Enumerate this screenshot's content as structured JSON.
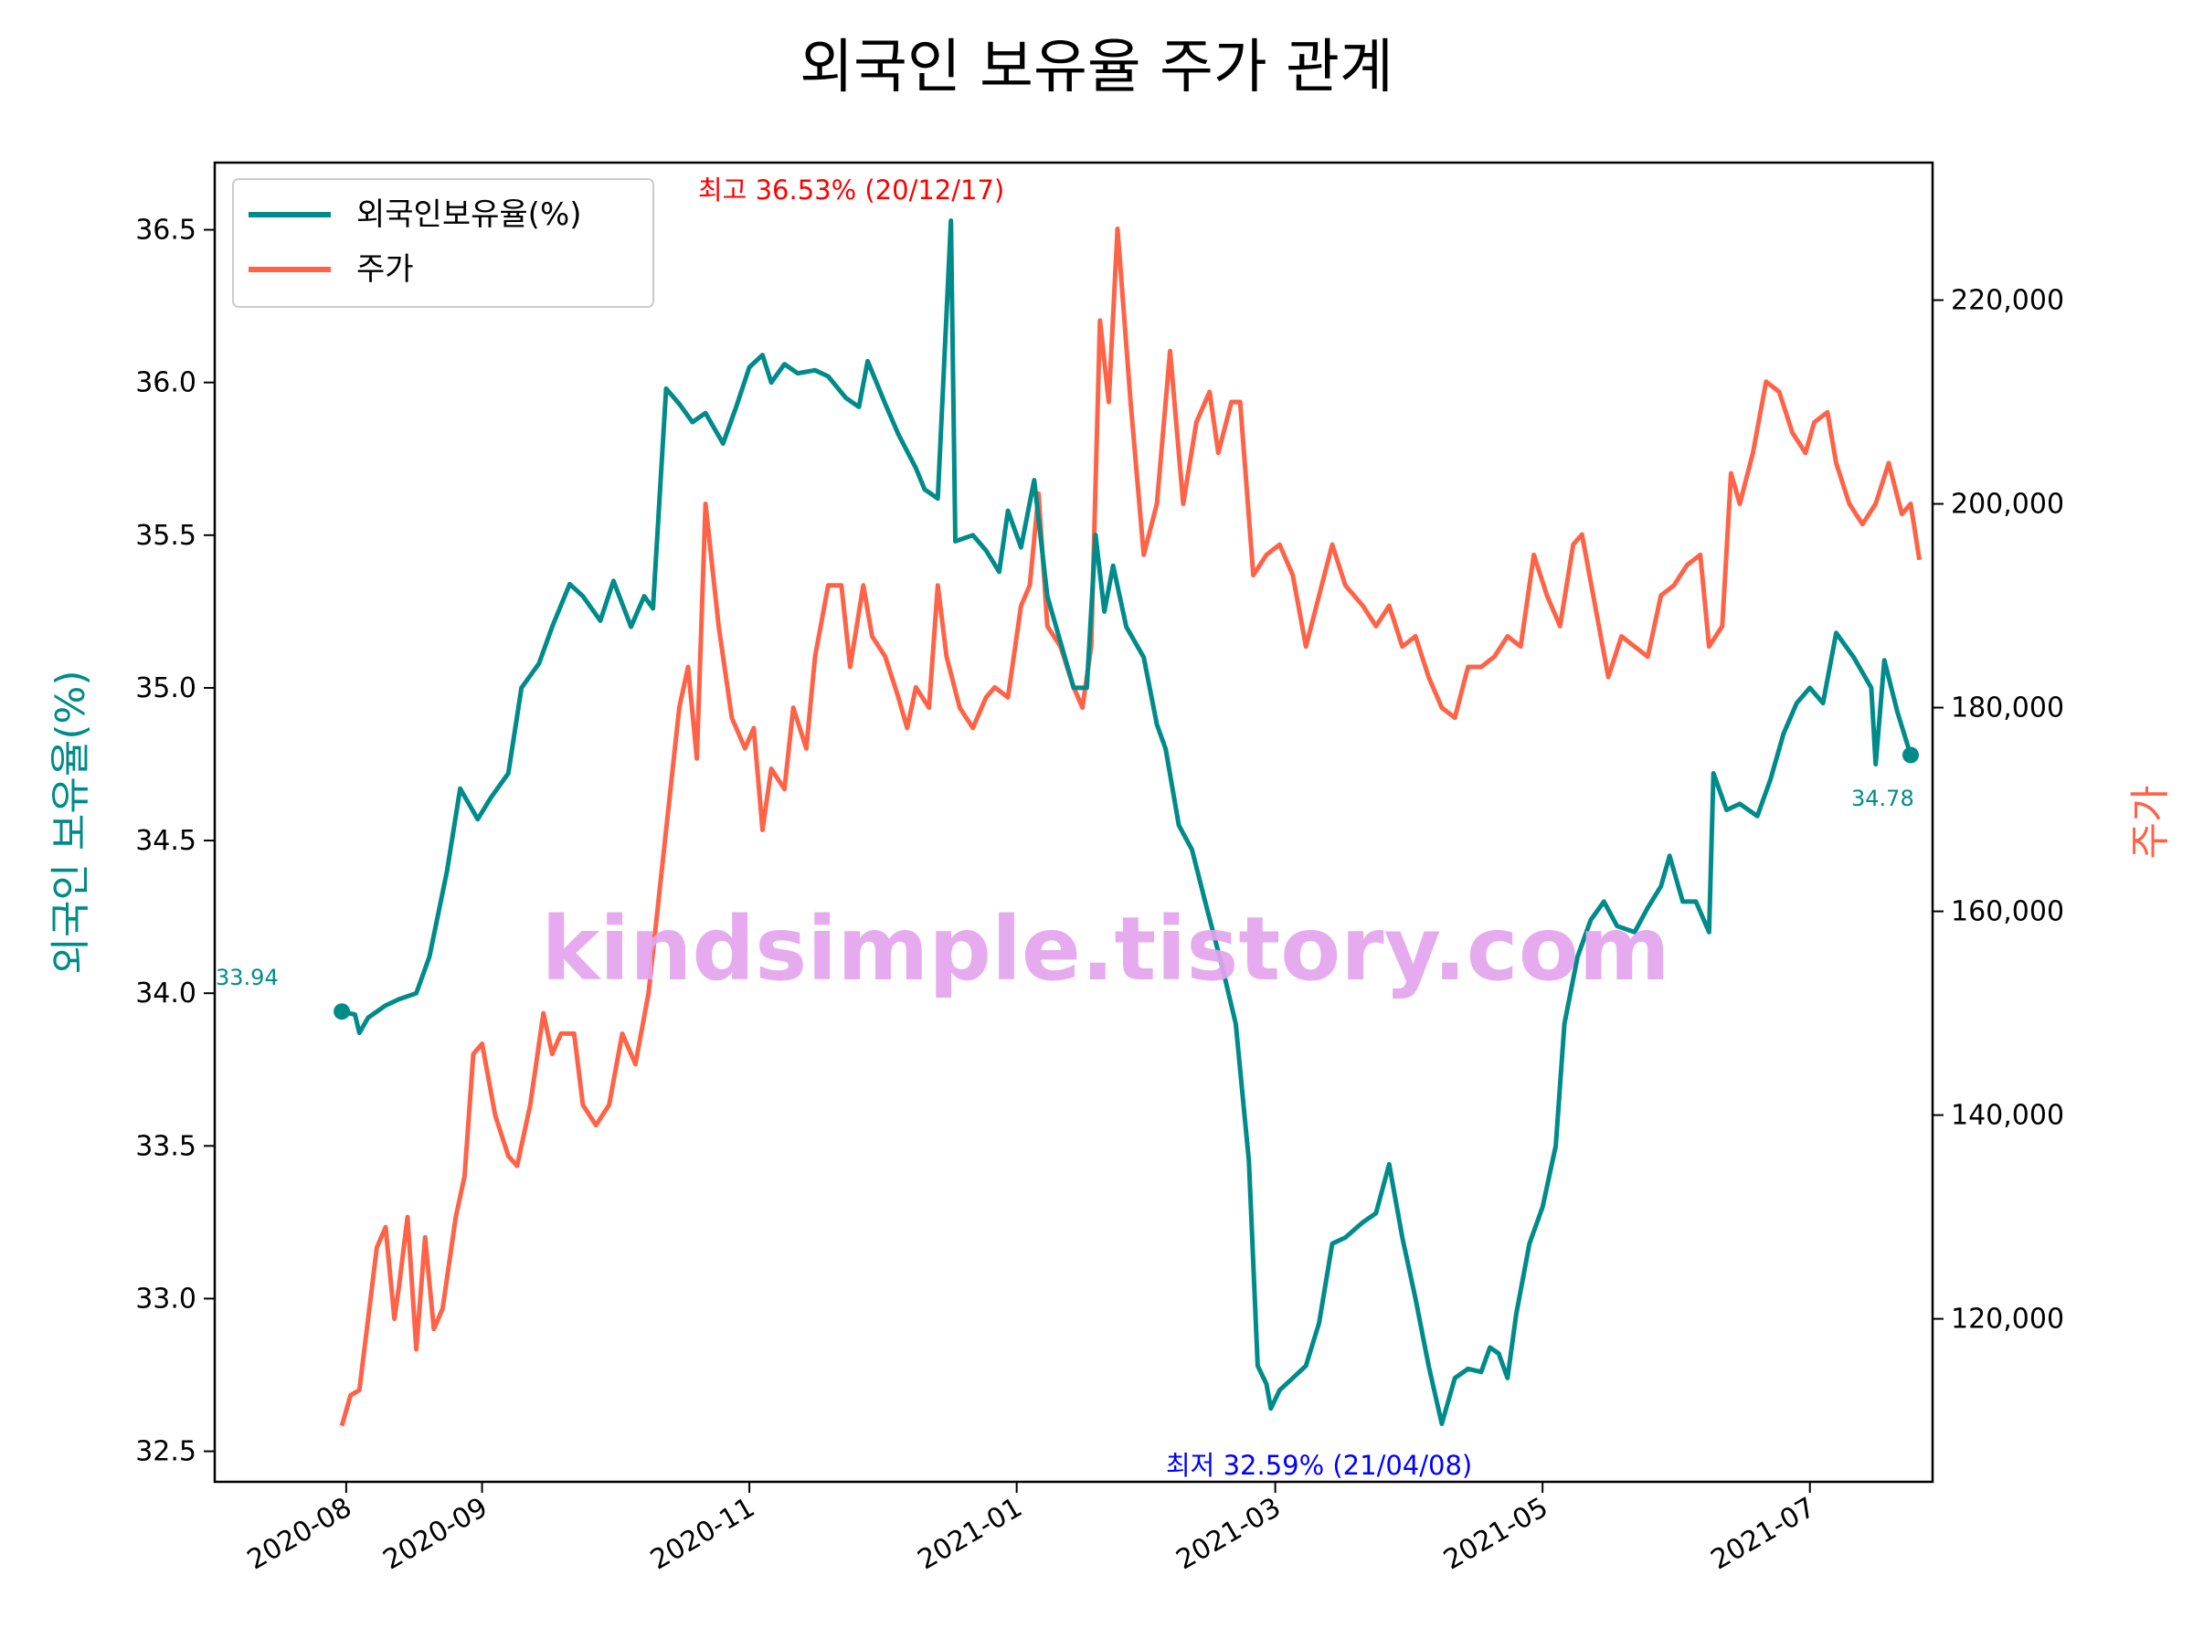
{
  "chart_data": {
    "type": "line",
    "title": "외국인 보유율 주가 관계",
    "xlabel": "",
    "ylabel": "외국인 보유율(%)",
    "y2label": "주가",
    "colors": {
      "foreign": "#008B8B",
      "price": "#FF6347",
      "max_annot": "#FF0000",
      "min_annot": "#0000FF",
      "watermark": "#E4A4EE"
    },
    "x_range": [
      "2020-07-02",
      "2021-07-29"
    ],
    "ylim": [
      32.4,
      36.72
    ],
    "y2lim": [
      104000,
      233500
    ],
    "x_ticks": [
      {
        "date": "2020-08-01",
        "label": "2020-08"
      },
      {
        "date": "2020-09-01",
        "label": "2020-09"
      },
      {
        "date": "2020-11-01",
        "label": "2020-11"
      },
      {
        "date": "2021-01-01",
        "label": "2021-01"
      },
      {
        "date": "2021-03-01",
        "label": "2021-03"
      },
      {
        "date": "2021-05-01",
        "label": "2021-05"
      },
      {
        "date": "2021-07-01",
        "label": "2021-07"
      }
    ],
    "y_ticks": [
      "32.5",
      "33.0",
      "33.5",
      "34.0",
      "34.5",
      "35.0",
      "35.5",
      "36.0",
      "36.5"
    ],
    "y2_ticks": [
      "120,000",
      "140,000",
      "160,000",
      "180,000",
      "200,000",
      "220,000"
    ],
    "grid": false,
    "legend_position": "top-left",
    "series": [
      {
        "name": "외국인보유율(%)",
        "axis": "left",
        "points": [
          [
            "2020-07-31",
            33.94
          ],
          [
            "2020-08-03",
            33.93
          ],
          [
            "2020-08-04",
            33.87
          ],
          [
            "2020-08-06",
            33.92
          ],
          [
            "2020-08-10",
            33.96
          ],
          [
            "2020-08-13",
            33.98
          ],
          [
            "2020-08-17",
            34.0
          ],
          [
            "2020-08-20",
            34.12
          ],
          [
            "2020-08-24",
            34.4
          ],
          [
            "2020-08-27",
            34.67
          ],
          [
            "2020-08-31",
            34.57
          ],
          [
            "2020-09-03",
            34.64
          ],
          [
            "2020-09-07",
            34.72
          ],
          [
            "2020-09-10",
            35.0
          ],
          [
            "2020-09-14",
            35.08
          ],
          [
            "2020-09-17",
            35.2
          ],
          [
            "2020-09-21",
            35.34
          ],
          [
            "2020-09-24",
            35.3
          ],
          [
            "2020-09-28",
            35.22
          ],
          [
            "2020-10-01",
            35.35
          ],
          [
            "2020-10-05",
            35.2
          ],
          [
            "2020-10-08",
            35.3
          ],
          [
            "2020-10-10",
            35.26
          ],
          [
            "2020-10-13",
            35.98
          ],
          [
            "2020-10-16",
            35.93
          ],
          [
            "2020-10-19",
            35.87
          ],
          [
            "2020-10-22",
            35.9
          ],
          [
            "2020-10-26",
            35.8
          ],
          [
            "2020-10-29",
            35.92
          ],
          [
            "2020-11-01",
            36.05
          ],
          [
            "2020-11-04",
            36.09
          ],
          [
            "2020-11-06",
            36.0
          ],
          [
            "2020-11-09",
            36.06
          ],
          [
            "2020-11-12",
            36.03
          ],
          [
            "2020-11-16",
            36.04
          ],
          [
            "2020-11-19",
            36.02
          ],
          [
            "2020-11-23",
            35.95
          ],
          [
            "2020-11-26",
            35.92
          ],
          [
            "2020-11-28",
            36.07
          ],
          [
            "2020-12-02",
            35.93
          ],
          [
            "2020-12-05",
            35.83
          ],
          [
            "2020-12-09",
            35.72
          ],
          [
            "2020-12-11",
            35.65
          ],
          [
            "2020-12-14",
            35.62
          ],
          [
            "2020-12-17",
            36.53
          ],
          [
            "2020-12-18",
            35.48
          ],
          [
            "2020-12-22",
            35.5
          ],
          [
            "2020-12-25",
            35.45
          ],
          [
            "2020-12-28",
            35.38
          ],
          [
            "2020-12-30",
            35.58
          ],
          [
            "2021-01-02",
            35.46
          ],
          [
            "2021-01-05",
            35.68
          ],
          [
            "2021-01-08",
            35.3
          ],
          [
            "2021-01-11",
            35.15
          ],
          [
            "2021-01-14",
            35.0
          ],
          [
            "2021-01-17",
            35.0
          ],
          [
            "2021-01-19",
            35.5
          ],
          [
            "2021-01-21",
            35.25
          ],
          [
            "2021-01-23",
            35.4
          ],
          [
            "2021-01-26",
            35.2
          ],
          [
            "2021-01-30",
            35.1
          ],
          [
            "2021-02-02",
            34.88
          ],
          [
            "2021-02-04",
            34.8
          ],
          [
            "2021-02-07",
            34.55
          ],
          [
            "2021-02-10",
            34.47
          ],
          [
            "2021-02-13",
            34.3
          ],
          [
            "2021-02-17",
            34.08
          ],
          [
            "2021-02-20",
            33.9
          ],
          [
            "2021-02-23",
            33.45
          ],
          [
            "2021-02-25",
            32.78
          ],
          [
            "2021-02-27",
            32.72
          ],
          [
            "2021-02-28",
            32.64
          ],
          [
            "2021-03-02",
            32.7
          ],
          [
            "2021-03-05",
            32.74
          ],
          [
            "2021-03-08",
            32.78
          ],
          [
            "2021-03-11",
            32.92
          ],
          [
            "2021-03-14",
            33.18
          ],
          [
            "2021-03-17",
            33.2
          ],
          [
            "2021-03-21",
            33.25
          ],
          [
            "2021-03-24",
            33.28
          ],
          [
            "2021-03-27",
            33.44
          ],
          [
            "2021-03-30",
            33.2
          ],
          [
            "2021-04-02",
            33.0
          ],
          [
            "2021-04-05",
            32.78
          ],
          [
            "2021-04-08",
            32.59
          ],
          [
            "2021-04-11",
            32.74
          ],
          [
            "2021-04-14",
            32.77
          ],
          [
            "2021-04-17",
            32.76
          ],
          [
            "2021-04-19",
            32.84
          ],
          [
            "2021-04-21",
            32.82
          ],
          [
            "2021-04-23",
            32.74
          ],
          [
            "2021-04-25",
            32.95
          ],
          [
            "2021-04-28",
            33.18
          ],
          [
            "2021-05-01",
            33.3
          ],
          [
            "2021-05-04",
            33.5
          ],
          [
            "2021-05-06",
            33.9
          ],
          [
            "2021-05-09",
            34.12
          ],
          [
            "2021-05-12",
            34.24
          ],
          [
            "2021-05-15",
            34.3
          ],
          [
            "2021-05-18",
            34.22
          ],
          [
            "2021-05-22",
            34.2
          ],
          [
            "2021-05-25",
            34.28
          ],
          [
            "2021-05-28",
            34.35
          ],
          [
            "2021-05-30",
            34.45
          ],
          [
            "2021-06-02",
            34.3
          ],
          [
            "2021-06-05",
            34.3
          ],
          [
            "2021-06-08",
            34.2
          ],
          [
            "2021-06-09",
            34.72
          ],
          [
            "2021-06-12",
            34.6
          ],
          [
            "2021-06-15",
            34.62
          ],
          [
            "2021-06-19",
            34.58
          ],
          [
            "2021-06-22",
            34.7
          ],
          [
            "2021-06-25",
            34.85
          ],
          [
            "2021-06-28",
            34.95
          ],
          [
            "2021-07-01",
            35.0
          ],
          [
            "2021-07-04",
            34.95
          ],
          [
            "2021-07-07",
            35.18
          ],
          [
            "2021-07-11",
            35.1
          ],
          [
            "2021-07-15",
            35.0
          ],
          [
            "2021-07-16",
            34.75
          ],
          [
            "2021-07-18",
            35.09
          ],
          [
            "2021-07-21",
            34.92
          ],
          [
            "2021-07-24",
            34.78
          ]
        ]
      },
      {
        "name": "주가",
        "axis": "right",
        "points": [
          [
            "2020-07-31",
            109500
          ],
          [
            "2020-08-02",
            112500
          ],
          [
            "2020-08-04",
            113000
          ],
          [
            "2020-08-08",
            127000
          ],
          [
            "2020-08-10",
            129000
          ],
          [
            "2020-08-12",
            120000
          ],
          [
            "2020-08-13",
            123000
          ],
          [
            "2020-08-15",
            130000
          ],
          [
            "2020-08-17",
            117000
          ],
          [
            "2020-08-19",
            128000
          ],
          [
            "2020-08-21",
            119000
          ],
          [
            "2020-08-23",
            121000
          ],
          [
            "2020-08-26",
            130000
          ],
          [
            "2020-08-28",
            134000
          ],
          [
            "2020-08-30",
            146000
          ],
          [
            "2020-09-01",
            147000
          ],
          [
            "2020-09-04",
            140000
          ],
          [
            "2020-09-07",
            136000
          ],
          [
            "2020-09-09",
            135000
          ],
          [
            "2020-09-12",
            141000
          ],
          [
            "2020-09-15",
            150000
          ],
          [
            "2020-09-17",
            146000
          ],
          [
            "2020-09-19",
            148000
          ],
          [
            "2020-09-22",
            148000
          ],
          [
            "2020-09-24",
            141000
          ],
          [
            "2020-09-27",
            139000
          ],
          [
            "2020-09-30",
            141000
          ],
          [
            "2020-10-03",
            148000
          ],
          [
            "2020-10-06",
            145000
          ],
          [
            "2020-10-09",
            152000
          ],
          [
            "2020-10-11",
            160000
          ],
          [
            "2020-10-13",
            168000
          ],
          [
            "2020-10-16",
            180000
          ],
          [
            "2020-10-18",
            184000
          ],
          [
            "2020-10-20",
            175000
          ],
          [
            "2020-10-22",
            200000
          ],
          [
            "2020-10-25",
            188000
          ],
          [
            "2020-10-28",
            179000
          ],
          [
            "2020-10-31",
            176000
          ],
          [
            "2020-11-02",
            178000
          ],
          [
            "2020-11-04",
            168000
          ],
          [
            "2020-11-06",
            174000
          ],
          [
            "2020-11-09",
            172000
          ],
          [
            "2020-11-11",
            180000
          ],
          [
            "2020-11-14",
            176000
          ],
          [
            "2020-11-16",
            185000
          ],
          [
            "2020-11-19",
            192000
          ],
          [
            "2020-11-22",
            192000
          ],
          [
            "2020-11-24",
            184000
          ],
          [
            "2020-11-27",
            192000
          ],
          [
            "2020-11-29",
            187000
          ],
          [
            "2020-12-02",
            185000
          ],
          [
            "2020-12-05",
            181000
          ],
          [
            "2020-12-07",
            178000
          ],
          [
            "2020-12-09",
            182000
          ],
          [
            "2020-12-12",
            180000
          ],
          [
            "2020-12-14",
            192000
          ],
          [
            "2020-12-16",
            185000
          ],
          [
            "2020-12-19",
            180000
          ],
          [
            "2020-12-22",
            178000
          ],
          [
            "2020-12-25",
            181000
          ],
          [
            "2020-12-27",
            182000
          ],
          [
            "2020-12-30",
            181000
          ],
          [
            "2021-01-02",
            190000
          ],
          [
            "2021-01-04",
            192000
          ],
          [
            "2021-01-06",
            201000
          ],
          [
            "2021-01-08",
            188000
          ],
          [
            "2021-01-11",
            186000
          ],
          [
            "2021-01-14",
            182000
          ],
          [
            "2021-01-16",
            180000
          ],
          [
            "2021-01-18",
            186000
          ],
          [
            "2021-01-20",
            218000
          ],
          [
            "2021-01-22",
            210000
          ],
          [
            "2021-01-24",
            227000
          ],
          [
            "2021-01-27",
            210000
          ],
          [
            "2021-01-30",
            195000
          ],
          [
            "2021-02-02",
            200000
          ],
          [
            "2021-02-05",
            215000
          ],
          [
            "2021-02-08",
            200000
          ],
          [
            "2021-02-11",
            208000
          ],
          [
            "2021-02-14",
            211000
          ],
          [
            "2021-02-16",
            205000
          ],
          [
            "2021-02-19",
            210000
          ],
          [
            "2021-02-21",
            210000
          ],
          [
            "2021-02-24",
            193000
          ],
          [
            "2021-02-27",
            195000
          ],
          [
            "2021-03-02",
            196000
          ],
          [
            "2021-03-05",
            193000
          ],
          [
            "2021-03-08",
            186000
          ],
          [
            "2021-03-11",
            191000
          ],
          [
            "2021-03-14",
            196000
          ],
          [
            "2021-03-17",
            192000
          ],
          [
            "2021-03-21",
            190000
          ],
          [
            "2021-03-24",
            188000
          ],
          [
            "2021-03-27",
            190000
          ],
          [
            "2021-03-30",
            186000
          ],
          [
            "2021-04-02",
            187000
          ],
          [
            "2021-04-05",
            183000
          ],
          [
            "2021-04-08",
            180000
          ],
          [
            "2021-04-11",
            179000
          ],
          [
            "2021-04-14",
            184000
          ],
          [
            "2021-04-17",
            184000
          ],
          [
            "2021-04-20",
            185000
          ],
          [
            "2021-04-23",
            187000
          ],
          [
            "2021-04-26",
            186000
          ],
          [
            "2021-04-29",
            195000
          ],
          [
            "2021-05-02",
            191000
          ],
          [
            "2021-05-05",
            188000
          ],
          [
            "2021-05-08",
            196000
          ],
          [
            "2021-05-10",
            197000
          ],
          [
            "2021-05-13",
            190000
          ],
          [
            "2021-05-16",
            183000
          ],
          [
            "2021-05-19",
            187000
          ],
          [
            "2021-05-22",
            186000
          ],
          [
            "2021-05-25",
            185000
          ],
          [
            "2021-05-28",
            191000
          ],
          [
            "2021-05-31",
            192000
          ],
          [
            "2021-06-03",
            194000
          ],
          [
            "2021-06-06",
            195000
          ],
          [
            "2021-06-08",
            186000
          ],
          [
            "2021-06-11",
            188000
          ],
          [
            "2021-06-13",
            203000
          ],
          [
            "2021-06-15",
            200000
          ],
          [
            "2021-06-18",
            205000
          ],
          [
            "2021-06-21",
            212000
          ],
          [
            "2021-06-24",
            211000
          ],
          [
            "2021-06-27",
            207000
          ],
          [
            "2021-06-30",
            205000
          ],
          [
            "2021-07-02",
            208000
          ],
          [
            "2021-07-05",
            209000
          ],
          [
            "2021-07-07",
            204000
          ],
          [
            "2021-07-10",
            200000
          ],
          [
            "2021-07-13",
            198000
          ],
          [
            "2021-07-16",
            200000
          ],
          [
            "2021-07-19",
            204000
          ],
          [
            "2021-07-22",
            199000
          ],
          [
            "2021-07-24",
            200000
          ],
          [
            "2021-07-26",
            194500
          ]
        ]
      }
    ],
    "annotations": {
      "start_value": "33.94",
      "end_value": "34.78",
      "max_label": "최고 36.53% (20/12/17)",
      "min_label": "최저 32.59% (21/04/08)"
    },
    "watermark": "kindsimple.tistory.com"
  }
}
